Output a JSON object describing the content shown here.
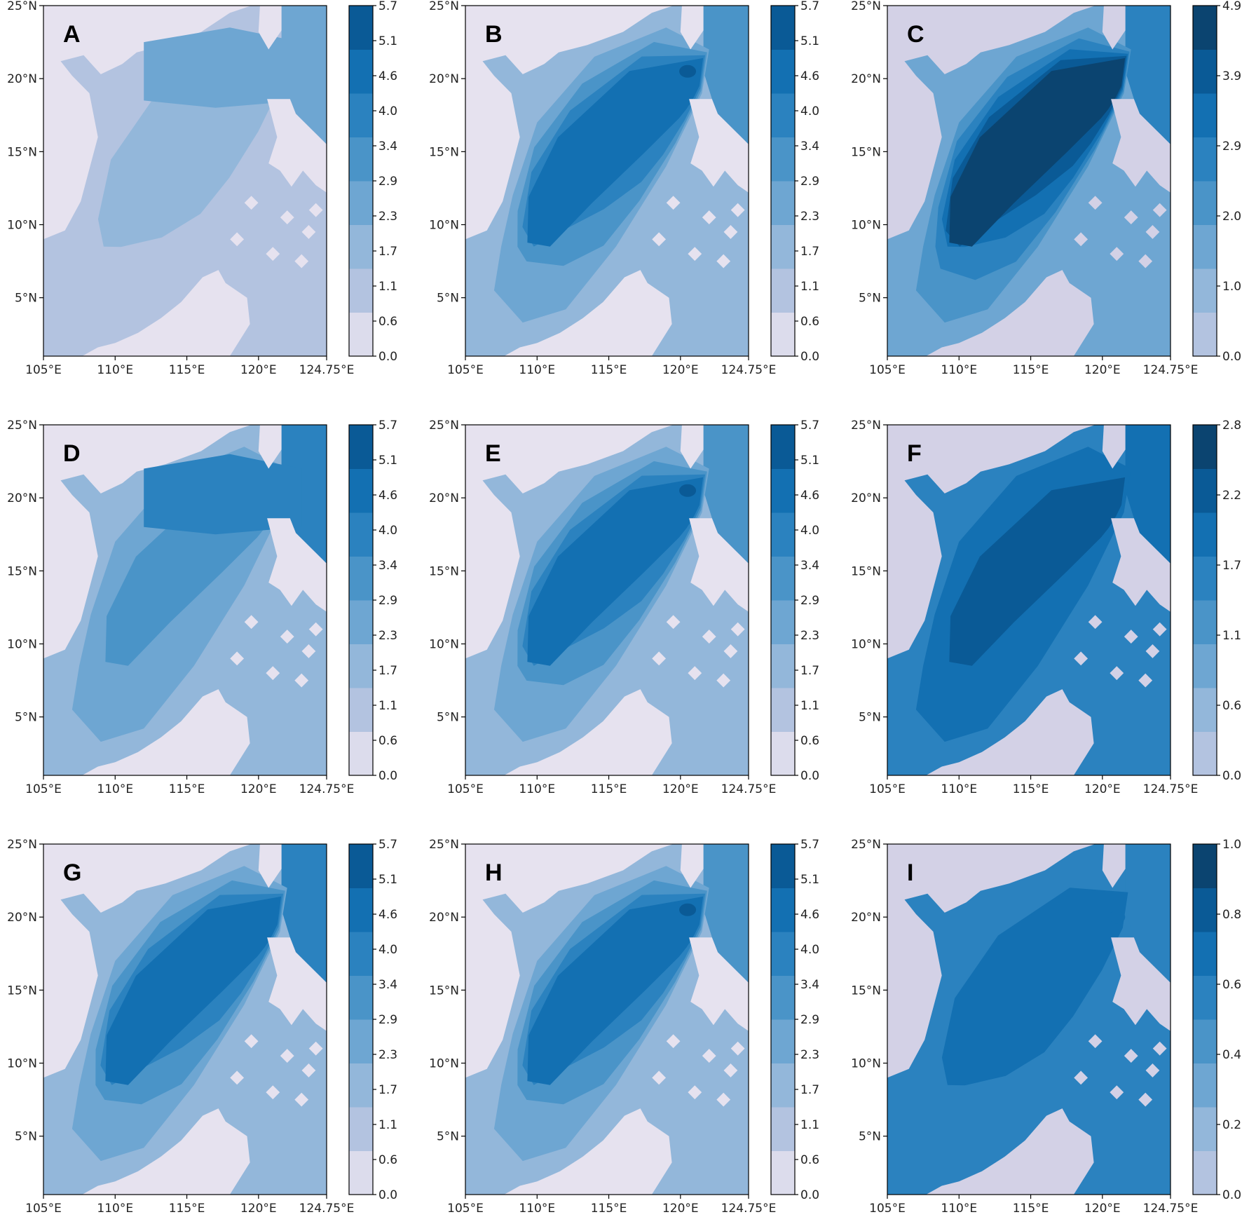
{
  "chart_data": [
    {
      "type": "heatmap",
      "panel_label": "A",
      "color_min": 0.0,
      "color_max": 5.7,
      "colorbar_ticks": [
        "0.0",
        "0.6",
        "1.1",
        "1.7",
        "2.3",
        "2.9",
        "3.4",
        "4.0",
        "4.6",
        "5.1",
        "5.7"
      ],
      "core_level": 2,
      "rim_level": 1,
      "east_level": 3,
      "max_level": 3,
      "north_band_level": 3,
      "north_band_lat": [
        18.5,
        22.5
      ],
      "axis_lon": [
        105.0,
        124.75
      ],
      "axis_lat": [
        1.0,
        25.0
      ],
      "xticks": [
        "105°E",
        "110°E",
        "115°E",
        "120°E",
        "124.75°E"
      ],
      "yticks": [
        "5°N",
        "10°N",
        "15°N",
        "20°N",
        "25°N"
      ],
      "land_color": "#e6e2ef"
    },
    {
      "type": "heatmap",
      "panel_label": "B",
      "color_min": 0.0,
      "color_max": 5.7,
      "colorbar_ticks": [
        "0.0",
        "0.6",
        "1.1",
        "1.7",
        "2.3",
        "2.9",
        "3.4",
        "4.0",
        "4.6",
        "5.1",
        "5.7"
      ],
      "core_level": 6,
      "rim_level": 2,
      "east_level": 4,
      "max_level": 7,
      "hotspot": [
        120.5,
        20.5
      ],
      "axis_lon": [
        105.0,
        124.75
      ],
      "axis_lat": [
        1.0,
        25.0
      ],
      "xticks": [
        "105°E",
        "110°E",
        "115°E",
        "120°E",
        "124.75°E"
      ],
      "yticks": [
        "5°N",
        "10°N",
        "15°N",
        "20°N",
        "25°N"
      ],
      "land_color": "#e6e2ef"
    },
    {
      "type": "heatmap",
      "panel_label": "C",
      "color_min": 0.0,
      "color_max": 4.9,
      "colorbar_ticks": [
        "0.0",
        "1.0",
        "2.0",
        "2.9",
        "3.9",
        "4.9"
      ],
      "core_level": 8,
      "rim_level": 3,
      "east_level": 5,
      "max_level": 8,
      "axis_lon": [
        105.0,
        124.75
      ],
      "axis_lat": [
        1.0,
        25.0
      ],
      "xticks": [
        "105°E",
        "110°E",
        "115°E",
        "120°E",
        "124.75°E"
      ],
      "yticks": [
        "5°N",
        "10°N",
        "15°N",
        "20°N",
        "25°N"
      ],
      "land_color": "#d3d1e6"
    },
    {
      "type": "heatmap",
      "panel_label": "D",
      "color_min": 0.0,
      "color_max": 5.7,
      "colorbar_ticks": [
        "0.0",
        "0.6",
        "1.1",
        "1.7",
        "2.3",
        "2.9",
        "3.4",
        "4.0",
        "4.6",
        "5.1",
        "5.7"
      ],
      "core_level": 4,
      "rim_level": 2,
      "east_level": 5,
      "max_level": 5,
      "north_band_level": 5,
      "north_band_lat": [
        18.0,
        22.0
      ],
      "axis_lon": [
        105.0,
        124.75
      ],
      "axis_lat": [
        1.0,
        25.0
      ],
      "xticks": [
        "105°E",
        "110°E",
        "115°E",
        "120°E",
        "124.75°E"
      ],
      "yticks": [
        "5°N",
        "10°N",
        "15°N",
        "20°N",
        "25°N"
      ],
      "land_color": "#e6e2ef"
    },
    {
      "type": "heatmap",
      "panel_label": "E",
      "color_min": 0.0,
      "color_max": 5.7,
      "colorbar_ticks": [
        "0.0",
        "0.6",
        "1.1",
        "1.7",
        "2.3",
        "2.9",
        "3.4",
        "4.0",
        "4.6",
        "5.1",
        "5.7"
      ],
      "core_level": 6,
      "rim_level": 2,
      "east_level": 4,
      "max_level": 7,
      "hotspot": [
        120.5,
        20.5
      ],
      "axis_lon": [
        105.0,
        124.75
      ],
      "axis_lat": [
        1.0,
        25.0
      ],
      "xticks": [
        "105°E",
        "110°E",
        "115°E",
        "120°E",
        "124.75°E"
      ],
      "yticks": [
        "5°N",
        "10°N",
        "15°N",
        "20°N",
        "25°N"
      ],
      "land_color": "#e6e2ef"
    },
    {
      "type": "heatmap",
      "panel_label": "F",
      "color_min": 0.0,
      "color_max": 2.8,
      "colorbar_ticks": [
        "0.0",
        "0.6",
        "1.1",
        "1.7",
        "2.2",
        "2.8"
      ],
      "core_level": 7,
      "rim_level": 5,
      "east_level": 6,
      "max_level": 7,
      "axis_lon": [
        105.0,
        124.75
      ],
      "axis_lat": [
        1.0,
        25.0
      ],
      "xticks": [
        "105°E",
        "110°E",
        "115°E",
        "120°E",
        "124.75°E"
      ],
      "yticks": [
        "5°N",
        "10°N",
        "15°N",
        "20°N",
        "25°N"
      ],
      "land_color": "#d3d1e6"
    },
    {
      "type": "heatmap",
      "panel_label": "G",
      "color_min": 0.0,
      "color_max": 5.7,
      "colorbar_ticks": [
        "0.0",
        "0.6",
        "1.1",
        "1.7",
        "2.3",
        "2.9",
        "3.4",
        "4.0",
        "4.6",
        "5.1",
        "5.7"
      ],
      "core_level": 6,
      "rim_level": 2,
      "east_level": 5,
      "max_level": 6,
      "axis_lon": [
        105.0,
        124.75
      ],
      "axis_lat": [
        1.0,
        25.0
      ],
      "xticks": [
        "105°E",
        "110°E",
        "115°E",
        "120°E",
        "124.75°E"
      ],
      "yticks": [
        "5°N",
        "10°N",
        "15°N",
        "20°N",
        "25°N"
      ],
      "land_color": "#e6e2ef"
    },
    {
      "type": "heatmap",
      "panel_label": "H",
      "color_min": 0.0,
      "color_max": 5.7,
      "colorbar_ticks": [
        "0.0",
        "0.6",
        "1.1",
        "1.7",
        "2.3",
        "2.9",
        "3.4",
        "4.0",
        "4.6",
        "5.1",
        "5.7"
      ],
      "core_level": 6,
      "rim_level": 2,
      "east_level": 4,
      "max_level": 7,
      "hotspot": [
        120.5,
        20.5
      ],
      "axis_lon": [
        105.0,
        124.75
      ],
      "axis_lat": [
        1.0,
        25.0
      ],
      "xticks": [
        "105°E",
        "110°E",
        "115°E",
        "120°E",
        "124.75°E"
      ],
      "yticks": [
        "5°N",
        "10°N",
        "15°N",
        "20°N",
        "25°N"
      ],
      "land_color": "#e6e2ef"
    },
    {
      "type": "heatmap",
      "panel_label": "I",
      "color_min": 0.0,
      "color_max": 1.0,
      "colorbar_ticks": [
        "0.0",
        "0.2",
        "0.4",
        "0.6",
        "0.8",
        "1.0"
      ],
      "core_level": 5,
      "rim_level": 5,
      "east_level": 5,
      "max_level": 6,
      "hotspot": [
        121.0,
        20.0
      ],
      "axis_lon": [
        105.0,
        124.75
      ],
      "axis_lat": [
        1.0,
        25.0
      ],
      "xticks": [
        "105°E",
        "110°E",
        "115°E",
        "120°E",
        "124.75°E"
      ],
      "yticks": [
        "5°N",
        "10°N",
        "15°N",
        "20°N",
        "25°N"
      ],
      "land_color": "#d3d1e6"
    }
  ],
  "palette": [
    "#dcdcec",
    "#b3c3e0",
    "#93b7da",
    "#6ea6d2",
    "#4a94c8",
    "#2b82bf",
    "#1370b2",
    "#0a5a96",
    "#0b4470"
  ]
}
